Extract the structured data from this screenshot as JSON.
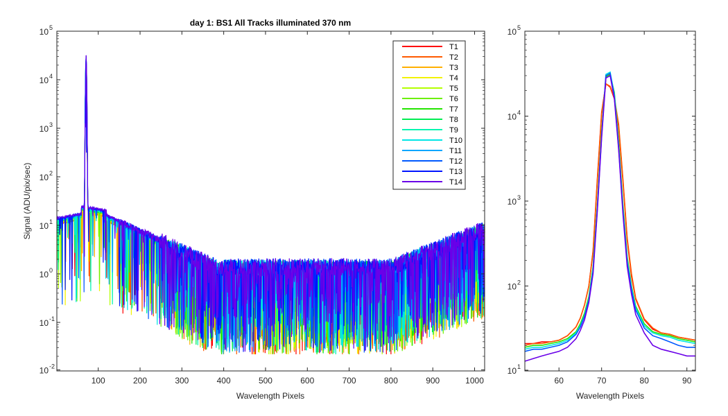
{
  "chart_data": [
    {
      "type": "line",
      "title": "day 1: BS1   All Tracks illuminated   370 nm",
      "xlabel": "Wavelength Pixels",
      "ylabel": "Signal (ADU/pix/sec)",
      "xlim": [
        1,
        1024
      ],
      "ylim": [
        0.01,
        100000
      ],
      "yscale": "log",
      "grid": false,
      "legend_position": "top-right",
      "xticks": [
        100,
        200,
        300,
        400,
        500,
        600,
        700,
        800,
        900,
        1000
      ],
      "xtick_labels": [
        "100",
        "200",
        "300",
        "400",
        "500",
        "600",
        "700",
        "800",
        "900",
        "1000"
      ],
      "yticks": [
        0.01,
        0.1,
        1,
        10,
        100,
        1000,
        10000,
        100000
      ],
      "ytick_labels": [
        "10",
        "10",
        "10",
        "10",
        "10",
        "10",
        "10",
        "10"
      ],
      "ytick_exponents": [
        "-2",
        "-1",
        "0",
        "1",
        "2",
        "3",
        "4",
        "5"
      ],
      "peak": {
        "x": 71,
        "y": 32000
      },
      "series": [
        {
          "name": "T1",
          "color": "#ff0000"
        },
        {
          "name": "T2",
          "color": "#ff5a00"
        },
        {
          "name": "T3",
          "color": "#ffb000"
        },
        {
          "name": "T4",
          "color": "#f2f200"
        },
        {
          "name": "T5",
          "color": "#b4ff00"
        },
        {
          "name": "T6",
          "color": "#6cf000"
        },
        {
          "name": "T7",
          "color": "#24e400"
        },
        {
          "name": "T8",
          "color": "#00ec50"
        },
        {
          "name": "T9",
          "color": "#00f5b0"
        },
        {
          "name": "T10",
          "color": "#00e6e6"
        },
        {
          "name": "T11",
          "color": "#00a6ff"
        },
        {
          "name": "T12",
          "color": "#0058ff"
        },
        {
          "name": "T13",
          "color": "#0014ff"
        },
        {
          "name": "T14",
          "color": "#6a00e8"
        }
      ]
    },
    {
      "type": "line",
      "title": "",
      "xlabel": "Wavelength Pixels",
      "ylabel": "",
      "xlim": [
        52,
        92
      ],
      "ylim": [
        10,
        100000
      ],
      "yscale": "log",
      "grid": false,
      "xticks": [
        60,
        70,
        80,
        90
      ],
      "xtick_labels": [
        "60",
        "70",
        "80",
        "90"
      ],
      "yticks": [
        10,
        100,
        1000,
        10000,
        100000
      ],
      "ytick_labels": [
        "10",
        "10",
        "10",
        "10",
        "10"
      ],
      "ytick_exponents": [
        "1",
        "2",
        "3",
        "4",
        "5"
      ],
      "x": [
        52,
        54,
        56,
        58,
        60,
        62,
        64,
        65,
        66,
        67,
        68,
        69,
        70,
        71,
        72,
        73,
        74,
        75,
        76,
        77,
        78,
        80,
        82,
        84,
        86,
        88,
        90,
        92
      ],
      "series_values": [
        {
          "name": "T1",
          "values": [
            21,
            21,
            22,
            22,
            23,
            26,
            33,
            42,
            60,
            100,
            260,
            1800,
            11000,
            24000,
            22000,
            16000,
            7500,
            1700,
            350,
            130,
            70,
            40,
            31,
            28,
            27,
            25,
            24,
            23
          ]
        },
        {
          "name": "T2",
          "values": [
            20,
            21,
            21,
            22,
            23,
            26,
            33,
            42,
            60,
            100,
            250,
            1700,
            10500,
            24000,
            22500,
            16500,
            8000,
            1800,
            370,
            140,
            72,
            41,
            32,
            28,
            27,
            25,
            24,
            23
          ]
        },
        {
          "name": "T7",
          "values": [
            19,
            20,
            20,
            21,
            22,
            24,
            29,
            36,
            48,
            75,
            170,
            900,
            6500,
            29000,
            31000,
            19000,
            5000,
            900,
            220,
            100,
            58,
            36,
            29,
            27,
            26,
            24,
            23,
            22
          ]
        },
        {
          "name": "T10",
          "values": [
            18,
            19,
            19,
            20,
            21,
            23,
            28,
            34,
            45,
            70,
            160,
            850,
            6000,
            31000,
            33000,
            18000,
            4500,
            800,
            200,
            95,
            55,
            34,
            28,
            26,
            25,
            23,
            22,
            21
          ]
        },
        {
          "name": "T12",
          "values": [
            17,
            18,
            18,
            19,
            20,
            22,
            27,
            33,
            44,
            68,
            150,
            800,
            5800,
            30000,
            32000,
            17000,
            4200,
            760,
            190,
            90,
            52,
            32,
            26,
            24,
            22,
            20,
            19,
            19
          ]
        },
        {
          "name": "T14",
          "values": [
            13,
            14,
            15,
            16,
            17,
            19,
            24,
            30,
            40,
            64,
            140,
            760,
            5500,
            28000,
            30000,
            16000,
            4000,
            700,
            170,
            80,
            46,
            28,
            20,
            18,
            17,
            16,
            15,
            15
          ]
        }
      ]
    }
  ]
}
